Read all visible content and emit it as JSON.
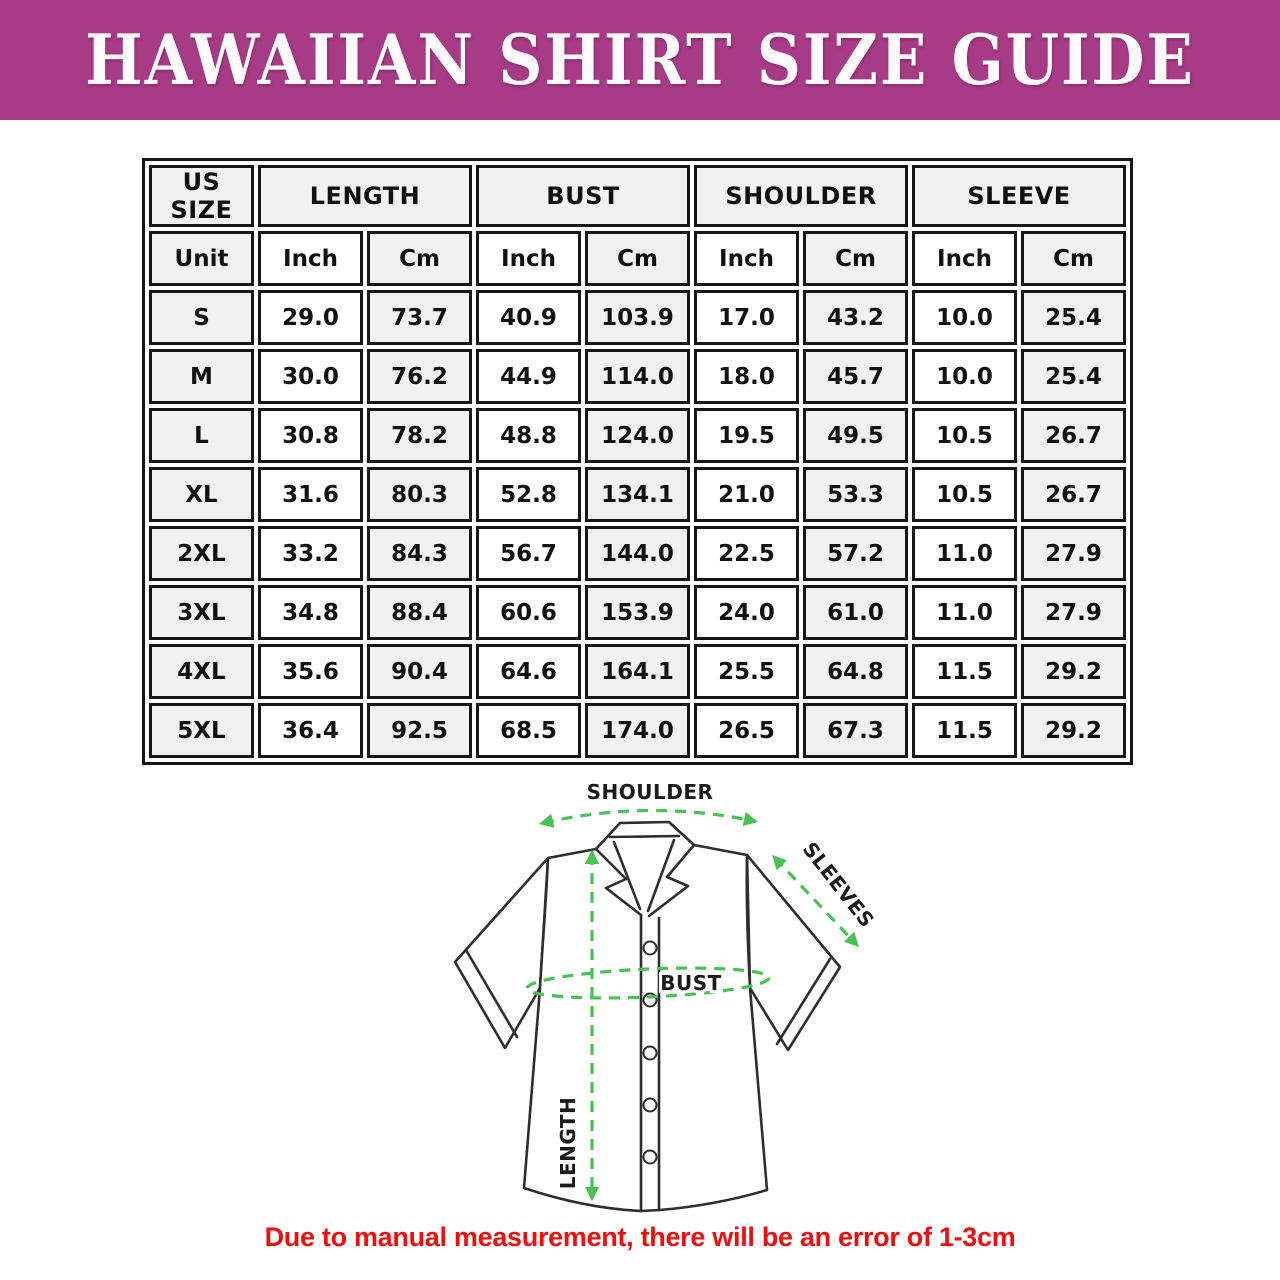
{
  "banner": {
    "title": "HAWAIIAN SHIRT SIZE GUIDE",
    "bg_color": "#a73b86",
    "text_color": "#ffffff"
  },
  "size_table": {
    "group_headers": [
      {
        "label": "US SIZE",
        "span": 1
      },
      {
        "label": "LENGTH",
        "span": 2
      },
      {
        "label": "BUST",
        "span": 2
      },
      {
        "label": "SHOULDER",
        "span": 2
      },
      {
        "label": "SLEEVE",
        "span": 2
      }
    ],
    "unit_row": [
      "Unit",
      "Inch",
      "Cm",
      "Inch",
      "Cm",
      "Inch",
      "Cm",
      "Inch",
      "Cm"
    ],
    "rows": [
      {
        "size": "S",
        "values": [
          "29.0",
          "73.7",
          "40.9",
          "103.9",
          "17.0",
          "43.2",
          "10.0",
          "25.4"
        ]
      },
      {
        "size": "M",
        "values": [
          "30.0",
          "76.2",
          "44.9",
          "114.0",
          "18.0",
          "45.7",
          "10.0",
          "25.4"
        ]
      },
      {
        "size": "L",
        "values": [
          "30.8",
          "78.2",
          "48.8",
          "124.0",
          "19.5",
          "49.5",
          "10.5",
          "26.7"
        ]
      },
      {
        "size": "XL",
        "values": [
          "31.6",
          "80.3",
          "52.8",
          "134.1",
          "21.0",
          "53.3",
          "10.5",
          "26.7"
        ]
      },
      {
        "size": "2XL",
        "values": [
          "33.2",
          "84.3",
          "56.7",
          "144.0",
          "22.5",
          "57.2",
          "11.0",
          "27.9"
        ]
      },
      {
        "size": "3XL",
        "values": [
          "34.8",
          "88.4",
          "60.6",
          "153.9",
          "24.0",
          "61.0",
          "11.0",
          "27.9"
        ]
      },
      {
        "size": "4XL",
        "values": [
          "35.6",
          "90.4",
          "64.6",
          "164.1",
          "25.5",
          "64.8",
          "11.5",
          "29.2"
        ]
      },
      {
        "size": "5XL",
        "values": [
          "36.4",
          "92.5",
          "68.5",
          "174.0",
          "26.5",
          "67.3",
          "11.5",
          "29.2"
        ]
      }
    ],
    "cell_gray": "#f1f1f1",
    "border_color": "#161616"
  },
  "diagram": {
    "labels": {
      "shoulder": "SHOULDER",
      "sleeves": "SLEEVES",
      "bust": "BUST",
      "length": "LENGTH"
    },
    "annotation_color": "#47c253",
    "outline_color": "#2e2e2e"
  },
  "footnote": {
    "text": "Due to manual measurement, there will be an error of 1-3cm",
    "color": "#f20d0d"
  }
}
